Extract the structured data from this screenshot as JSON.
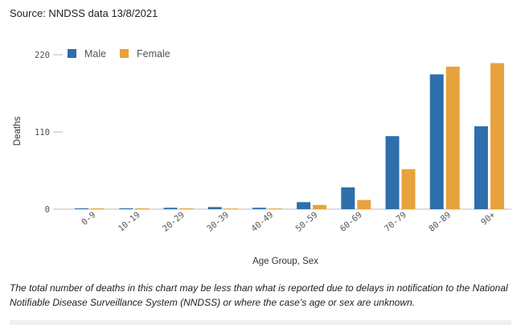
{
  "source": "Source: NNDSS data 13/8/2021",
  "footnote": "The total number of deaths in this chart may be less than what is reported due to delays in notification to the National Notifiable Disease Surveillance System (NNDSS) or where the case’s age or sex are unknown.",
  "colors": {
    "male": "#2e6ead",
    "female": "#e8a23c",
    "axis": "#bbbbbb"
  },
  "chart_data": {
    "type": "bar",
    "xlabel": "Age Group, Sex",
    "ylabel": "Deaths",
    "ylim": [
      0,
      220
    ],
    "yticks": [
      0,
      110,
      220
    ],
    "legend_position": "top-left",
    "categories": [
      "0-9",
      "10-19",
      "20-29",
      "30-39",
      "40-49",
      "50-59",
      "60-69",
      "70-79",
      "80-89",
      "90+"
    ],
    "series": [
      {
        "name": "Male",
        "values": [
          0,
          0,
          2,
          3,
          2,
          10,
          31,
          104,
          192,
          118
        ]
      },
      {
        "name": "Female",
        "values": [
          0,
          0,
          0,
          1,
          1,
          6,
          13,
          57,
          203,
          208
        ]
      }
    ]
  }
}
